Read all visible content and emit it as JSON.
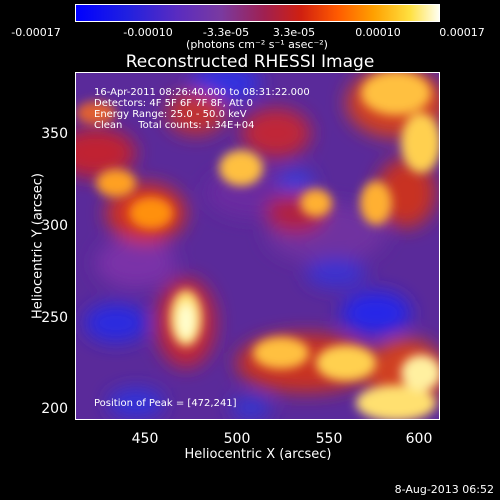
{
  "colorbar": {
    "ticks": [
      "-0.00017",
      "-0.00010",
      "-3.3e-05",
      "3.3e-05",
      "0.00010",
      "0.00017"
    ],
    "units": "(photons cm⁻² s⁻¹ asec⁻²)"
  },
  "title": "Reconstructed RHESSI Image",
  "info": {
    "line1": "16-Apr-2011 08:26:40.000 to 08:31:22.000",
    "line2": "Detectors: 4F 5F 6F 7F 8F, Att 0",
    "line3": "Energy Range: 25.0 - 50.0 keV",
    "line4": "Clean     Total counts: 1.34E+04"
  },
  "peak_text": "Position of Peak = [472,241]",
  "axes": {
    "xlabel": "Heliocentric X (arcsec)",
    "ylabel": "Heliocentric Y (arcsec)",
    "xticks": [
      "450",
      "500",
      "550",
      "600"
    ],
    "yticks": [
      "350",
      "300",
      "250",
      "200"
    ]
  },
  "date_stamp": "8-Aug-2013 06:52"
}
